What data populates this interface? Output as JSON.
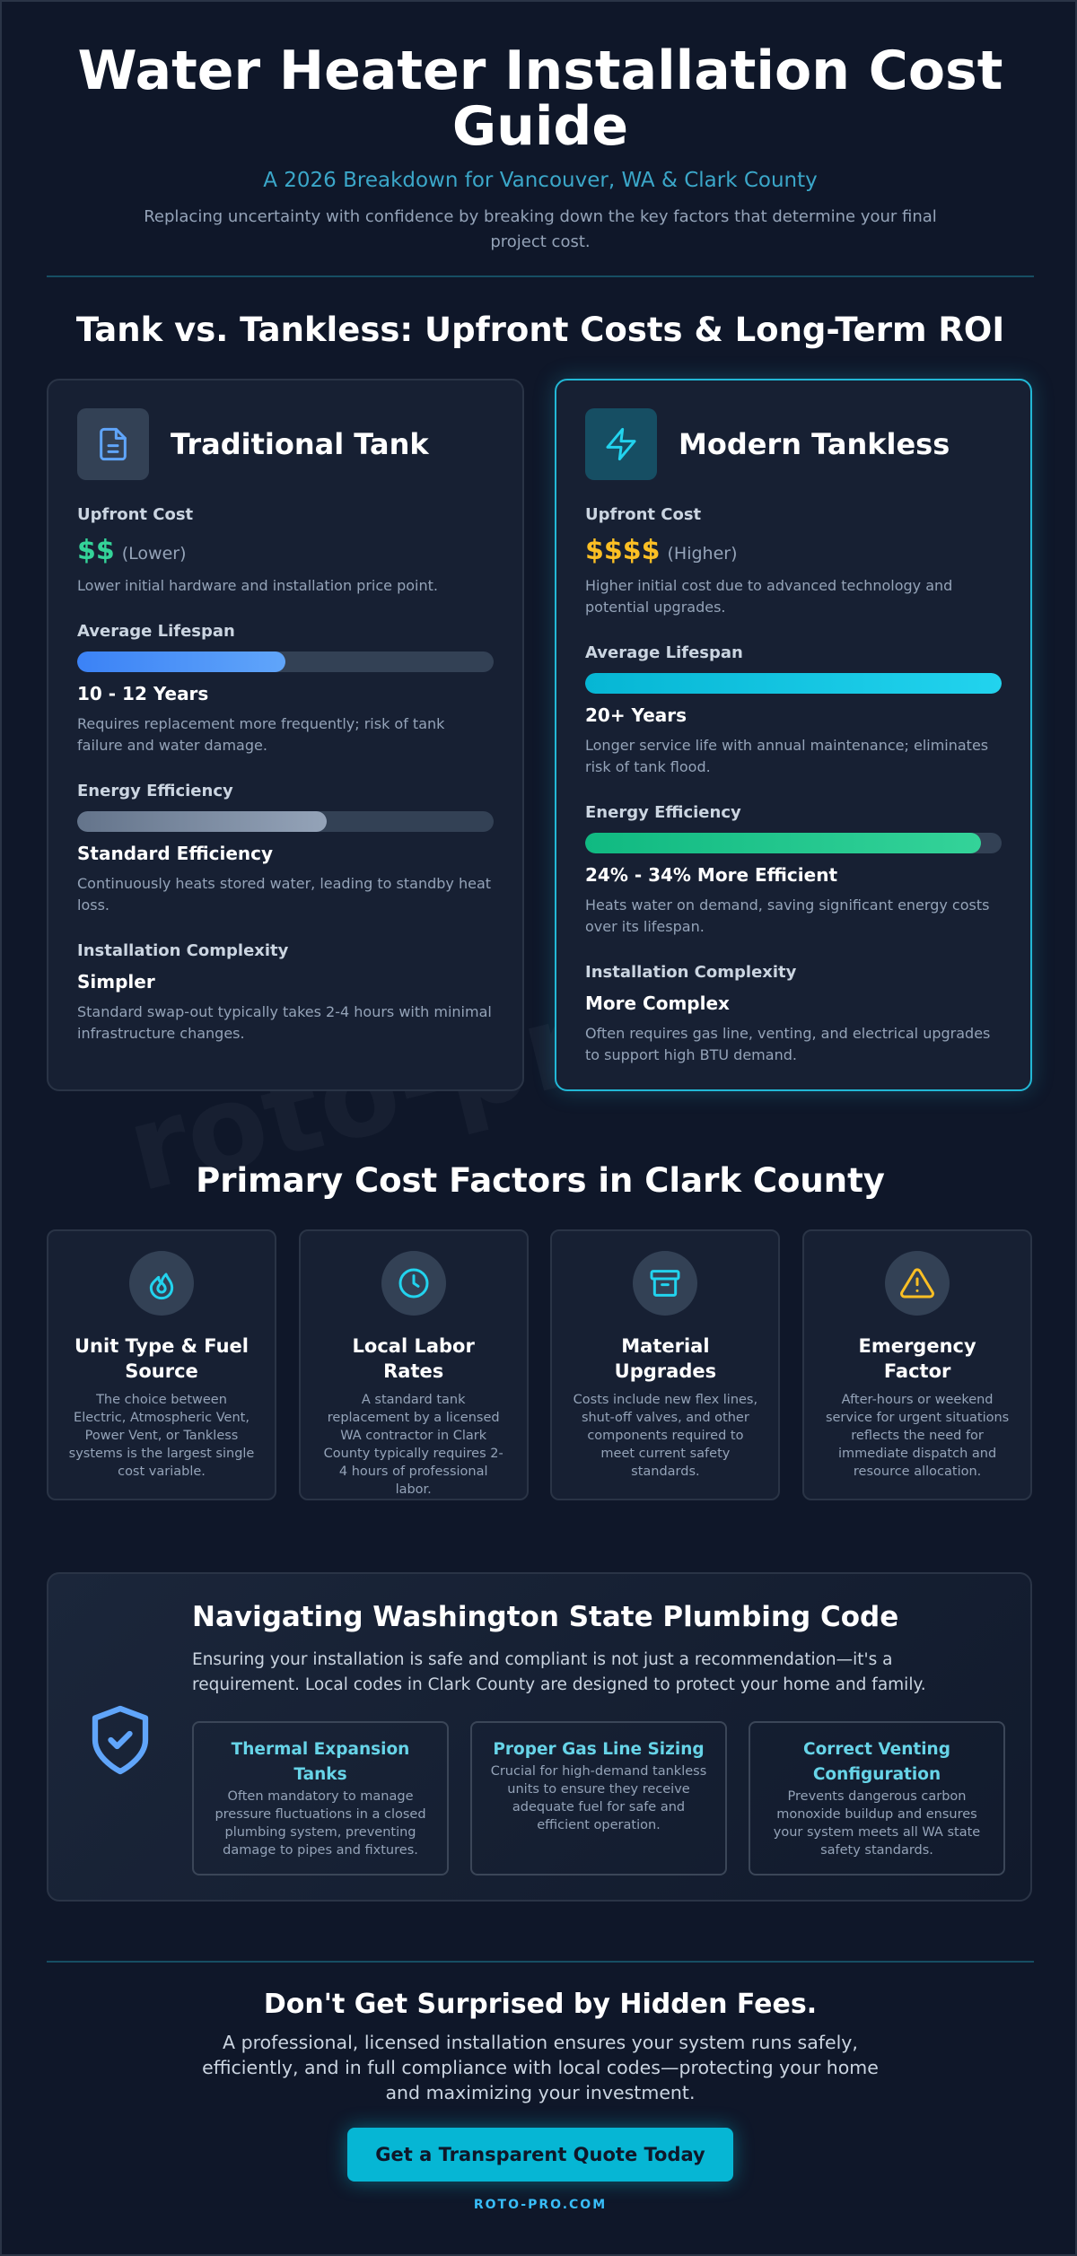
{
  "header": {
    "title": "Water Heater Installation Cost Guide",
    "subtitle": "A 2026 Breakdown for Vancouver, WA & Clark County",
    "intro": "Replacing uncertainty with confidence by breaking down the key factors that determine your final project cost."
  },
  "watermark": "roto-pro.com",
  "comparison": {
    "heading": "Tank vs. Tankless: Upfront Costs & Long-Term ROI",
    "cards": [
      {
        "title": "Traditional Tank",
        "rows": [
          {
            "label": "Upfront Cost",
            "value": "$$",
            "qualifier": "(Lower)",
            "note": "Lower initial hardware and installation price point."
          },
          {
            "label": "Average Lifespan",
            "value": "10 - 12 Years",
            "note": "Requires replacement more frequently; risk of tank failure and water damage."
          },
          {
            "label": "Energy Efficiency",
            "value": "Standard Efficiency",
            "note": "Continuously heats stored water, leading to standby heat loss."
          },
          {
            "label": "Installation Complexity",
            "value": "Simpler",
            "note": "Standard swap-out typically takes 2-4 hours with minimal infrastructure changes."
          }
        ]
      },
      {
        "title": "Modern Tankless",
        "rows": [
          {
            "label": "Upfront Cost",
            "value": "$$$$",
            "qualifier": "(Higher)",
            "note": "Higher initial cost due to advanced technology and potential upgrades."
          },
          {
            "label": "Average Lifespan",
            "value": "20+ Years",
            "note": "Longer service life with annual maintenance; eliminates risk of tank flood."
          },
          {
            "label": "Energy Efficiency",
            "value": "24% - 34% More Efficient",
            "note": "Heats water on demand, saving significant energy costs over its lifespan."
          },
          {
            "label": "Installation Complexity",
            "value": "More Complex",
            "note": "Often requires gas line, venting, and electrical upgrades to support high BTU demand."
          }
        ]
      }
    ]
  },
  "factors": {
    "heading": "Primary Cost Factors in Clark County",
    "items": [
      {
        "title": "Unit Type & Fuel Source",
        "text": "The choice between Electric, Atmospheric Vent, Power Vent, or Tankless systems is the largest single cost variable."
      },
      {
        "title": "Local Labor Rates",
        "text": "A standard tank replacement by a licensed WA contractor in Clark County typically requires 2-4 hours of professional labor."
      },
      {
        "title": "Material Upgrades",
        "text": "Costs include new flex lines, shut-off valves, and other components required to meet current safety standards."
      },
      {
        "title": "Emergency Factor",
        "text": "After-hours or weekend service for urgent situations reflects the need for immediate dispatch and resource allocation."
      }
    ]
  },
  "code": {
    "title": "Navigating Washington State Plumbing Code",
    "intro": "Ensuring your installation is safe and compliant is not just a recommendation—it's a requirement. Local codes in Clark County are designed to protect your home and family.",
    "items": [
      {
        "title": "Thermal Expansion Tanks",
        "text": "Often mandatory to manage pressure fluctuations in a closed plumbing system, preventing damage to pipes and fixtures."
      },
      {
        "title": "Proper Gas Line Sizing",
        "text": "Crucial for high-demand tankless units to ensure they receive adequate fuel for safe and efficient operation."
      },
      {
        "title": "Correct Venting Configuration",
        "text": "Prevents dangerous carbon monoxide buildup and ensures your system meets all WA state safety standards."
      }
    ]
  },
  "cta": {
    "heading": "Don't Get Surprised by Hidden Fees.",
    "text": "A professional, licensed installation ensures your system runs safely, efficiently, and in full compliance with local codes—protecting your home and maximizing your investment.",
    "button": "Get a Transparent Quote Today",
    "footer": "ROTO-PRO.COM"
  }
}
